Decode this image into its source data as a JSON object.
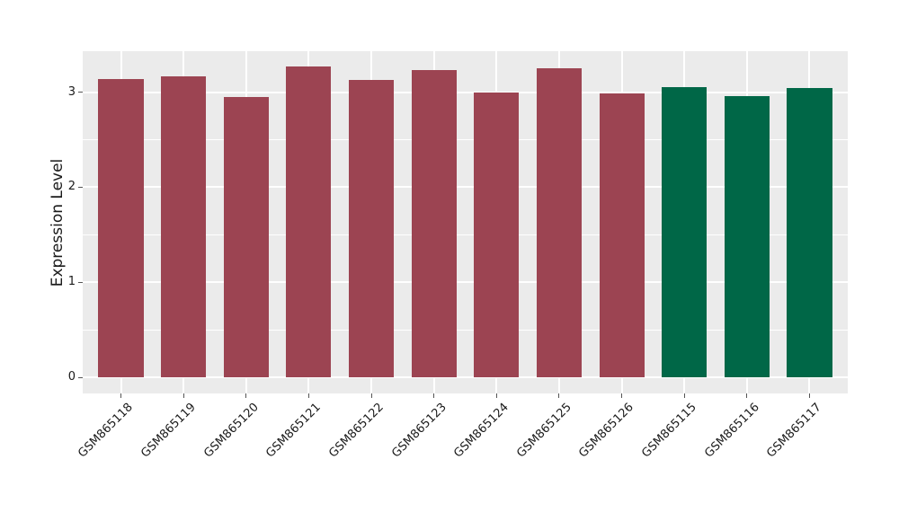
{
  "figure": {
    "background": "#FFFFFF"
  },
  "chart_data": {
    "type": "bar",
    "title": "",
    "xlabel": "",
    "ylabel": "Expression Level",
    "categories": [
      "GSM865118",
      "GSM865119",
      "GSM865120",
      "GSM865121",
      "GSM865122",
      "GSM865123",
      "GSM865124",
      "GSM865125",
      "GSM865126",
      "GSM865115",
      "GSM865116",
      "GSM865117"
    ],
    "values": [
      3.14,
      3.17,
      2.95,
      3.27,
      3.13,
      3.23,
      3.0,
      3.25,
      2.99,
      3.05,
      2.96,
      3.04
    ],
    "bar_colors": [
      "#9C4452",
      "#9C4452",
      "#9C4452",
      "#9C4452",
      "#9C4452",
      "#9C4452",
      "#9C4452",
      "#9C4452",
      "#9C4452",
      "#006747",
      "#006747",
      "#006747"
    ],
    "group_colors": {
      "maroon": "#9C4452",
      "green": "#006747"
    },
    "ylim": [
      -0.17,
      3.43
    ],
    "yticks": [
      "0",
      "1",
      "2",
      "3"
    ],
    "ytick_values": [
      0,
      1,
      2,
      3
    ],
    "yticks_minor": [
      0.5,
      1.5,
      2.5
    ],
    "grid": true,
    "legend_position": "none",
    "x_label_rotation_deg": 45,
    "panel_background": "#EBEBEB",
    "grid_color": "#FFFFFF",
    "tick_color": "#555555",
    "text_color": "#1A1A1A",
    "bar_width_fraction": 0.72
  }
}
